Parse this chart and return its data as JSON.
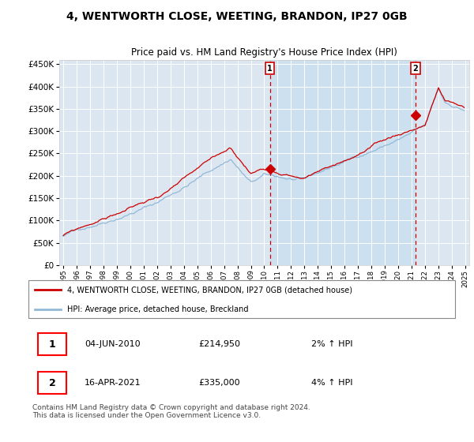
{
  "title": "4, WENTWORTH CLOSE, WEETING, BRANDON, IP27 0GB",
  "subtitle": "Price paid vs. HM Land Registry's House Price Index (HPI)",
  "legend_label_red": "4, WENTWORTH CLOSE, WEETING, BRANDON, IP27 0GB (detached house)",
  "legend_label_blue": "HPI: Average price, detached house, Breckland",
  "annotation1_date": "04-JUN-2010",
  "annotation1_price": "£214,950",
  "annotation1_hpi": "2% ↑ HPI",
  "annotation2_date": "16-APR-2021",
  "annotation2_price": "£335,000",
  "annotation2_hpi": "4% ↑ HPI",
  "footer": "Contains HM Land Registry data © Crown copyright and database right 2024.\nThis data is licensed under the Open Government Licence v3.0.",
  "ylim": [
    0,
    460000
  ],
  "yticks": [
    0,
    50000,
    100000,
    150000,
    200000,
    250000,
    300000,
    350000,
    400000,
    450000
  ],
  "plot_bg": "#dce6f1",
  "highlight_bg": "#cce0f0",
  "red_color": "#cc0000",
  "blue_color": "#91b9d8",
  "sale1_x": 2010.42,
  "sale1_y": 214950,
  "sale2_x": 2021.29,
  "sale2_y": 335000,
  "xmin": 1995.0,
  "xmax": 2025.0
}
